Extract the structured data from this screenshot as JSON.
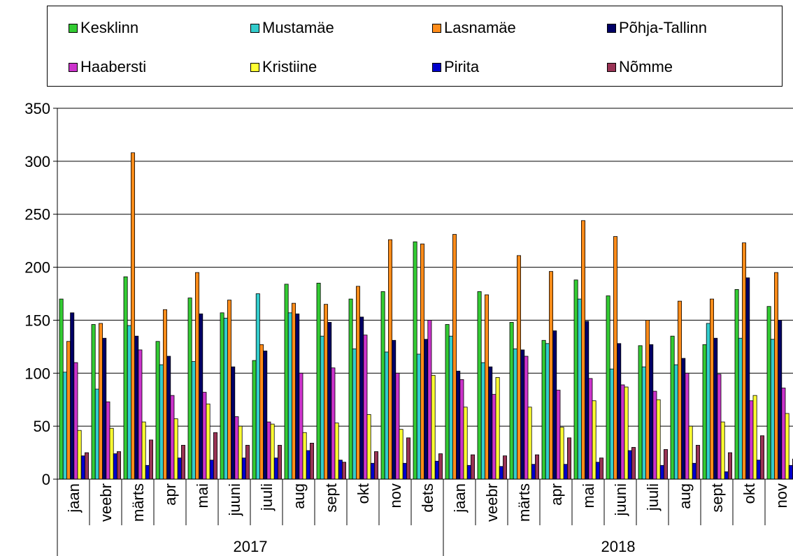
{
  "chart_data": {
    "type": "bar",
    "title": "",
    "xlabel": "",
    "ylabel": "",
    "ylim": [
      0,
      350
    ],
    "yticks": [
      0,
      50,
      100,
      150,
      200,
      250,
      300,
      350
    ],
    "grid": "horizontal",
    "legend_position": "top",
    "categories": [
      "jaan",
      "veebr",
      "märts",
      "apr",
      "mai",
      "juuni",
      "juuli",
      "aug",
      "sept",
      "okt",
      "nov",
      "dets",
      "jaan",
      "veebr",
      "märts",
      "apr",
      "mai",
      "juuni",
      "juuli",
      "aug",
      "sept",
      "okt",
      "nov"
    ],
    "groups": [
      {
        "label": "2017",
        "count": 12
      },
      {
        "label": "2018",
        "count": 11
      }
    ],
    "series": [
      {
        "name": "Kesklinn",
        "color": "#33cc33",
        "values": [
          170,
          146,
          191,
          130,
          171,
          157,
          112,
          184,
          185,
          170,
          177,
          224,
          146,
          177,
          148,
          131,
          188,
          173,
          126,
          135,
          127,
          179,
          163
        ]
      },
      {
        "name": "Mustamäe",
        "color": "#33cccc",
        "values": [
          101,
          85,
          145,
          108,
          111,
          152,
          175,
          157,
          135,
          123,
          120,
          118,
          135,
          110,
          123,
          128,
          170,
          104,
          106,
          108,
          147,
          133,
          132
        ]
      },
      {
        "name": "Lasnamäe",
        "color": "#ff8c1a",
        "values": [
          130,
          147,
          308,
          160,
          195,
          169,
          127,
          166,
          165,
          182,
          226,
          222,
          231,
          174,
          211,
          196,
          244,
          229,
          150,
          168,
          170,
          223,
          195
        ]
      },
      {
        "name": "Põhja-Tallinn",
        "color": "#000066",
        "values": [
          157,
          133,
          135,
          116,
          156,
          106,
          121,
          156,
          148,
          153,
          131,
          132,
          102,
          106,
          122,
          140,
          149,
          128,
          127,
          114,
          133,
          190,
          150
        ]
      },
      {
        "name": "Haabersti",
        "color": "#cc33cc",
        "values": [
          110,
          73,
          122,
          79,
          82,
          59,
          54,
          100,
          105,
          136,
          100,
          150,
          94,
          80,
          116,
          84,
          95,
          89,
          83,
          100,
          99,
          74,
          86
        ]
      },
      {
        "name": "Kristiine",
        "color": "#ffff33",
        "values": [
          46,
          48,
          54,
          57,
          71,
          50,
          52,
          44,
          53,
          61,
          47,
          98,
          68,
          96,
          68,
          49,
          74,
          87,
          75,
          50,
          54,
          79,
          62
        ]
      },
      {
        "name": "Pirita",
        "color": "#0000cc",
        "values": [
          22,
          24,
          13,
          20,
          18,
          20,
          20,
          27,
          18,
          15,
          15,
          17,
          13,
          12,
          14,
          14,
          16,
          27,
          13,
          15,
          7,
          18,
          13
        ]
      },
      {
        "name": "Nõmme",
        "color": "#993355",
        "values": [
          25,
          26,
          37,
          32,
          44,
          32,
          32,
          34,
          16,
          26,
          39,
          24,
          23,
          22,
          23,
          39,
          20,
          30,
          28,
          32,
          25,
          41,
          19
        ]
      }
    ]
  }
}
